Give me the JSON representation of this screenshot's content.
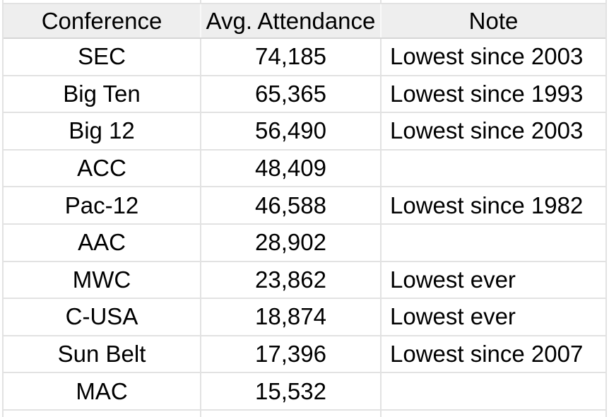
{
  "table": {
    "columns": [
      {
        "label": "Conference",
        "align": "center"
      },
      {
        "label": "Avg. Attendance",
        "align": "center"
      },
      {
        "label": "Note",
        "align": "left"
      }
    ],
    "rows": [
      {
        "conference": "SEC",
        "attendance": "74,185",
        "note": "Lowest since 2003"
      },
      {
        "conference": "Big Ten",
        "attendance": "65,365",
        "note": "Lowest since 1993"
      },
      {
        "conference": "Big 12",
        "attendance": "56,490",
        "note": "Lowest since 2003"
      },
      {
        "conference": "ACC",
        "attendance": "48,409",
        "note": ""
      },
      {
        "conference": "Pac-12",
        "attendance": "46,588",
        "note": "Lowest since 1982"
      },
      {
        "conference": "AAC",
        "attendance": "28,902",
        "note": ""
      },
      {
        "conference": "MWC",
        "attendance": "23,862",
        "note": "Lowest ever"
      },
      {
        "conference": "C-USA",
        "attendance": "18,874",
        "note": "Lowest ever"
      },
      {
        "conference": "Sun Belt",
        "attendance": "17,396",
        "note": "Lowest since 2007"
      },
      {
        "conference": "MAC",
        "attendance": "15,532",
        "note": ""
      }
    ],
    "colors": {
      "header_bg": "#eeeeee",
      "gridline": "#e2e2e2",
      "header_border_bottom": "#d6d6d6",
      "header_divider": "#f9f9f9",
      "text": "#000000"
    }
  }
}
